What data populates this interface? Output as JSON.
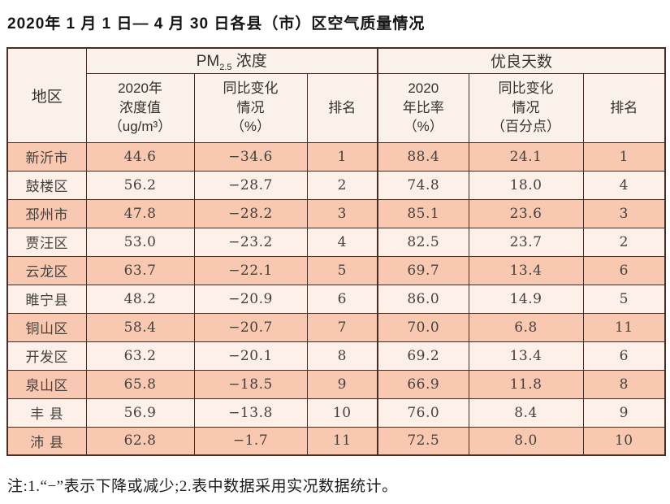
{
  "page": {
    "title": "2020年 1 月 1 日— 4 月 30 日各县（市）区空气质量情况",
    "note": "注:1.“−”表示下降或减少;2.表中数据采用实况数据统计。"
  },
  "colors": {
    "border": "#462e26",
    "row_odd_bg": "#f9c8b1",
    "row_even_bg": "#fdf0e8",
    "header_bg": "#faf1ea",
    "text": "#3c3835"
  },
  "table": {
    "col_region": "地区",
    "group_pm25": {
      "prefix": "PM",
      "sub": "2.5",
      "suffix": " 浓度"
    },
    "group_good_days": "优良天数",
    "sub_headers": {
      "pm_value": "2020年\n浓度值\n（ug/m³）",
      "pm_change": "同比变化\n情况\n（%）",
      "pm_rank": "排名",
      "gd_rate": "2020\n年比率\n（%）",
      "gd_change": "同比变化\n情况\n（百分点）",
      "gd_rank": "排名"
    },
    "columns_order": [
      "region",
      "pm_value",
      "pm_change",
      "pm_rank",
      "gd_rate",
      "gd_change",
      "gd_rank"
    ],
    "rows": [
      {
        "region": "新沂市",
        "pm_value": "44.6",
        "pm_change": "−34.6",
        "pm_rank": "1",
        "gd_rate": "88.4",
        "gd_change": "24.1",
        "gd_rank": "1"
      },
      {
        "region": "鼓楼区",
        "pm_value": "56.2",
        "pm_change": "−28.7",
        "pm_rank": "2",
        "gd_rate": "74.8",
        "gd_change": "18.0",
        "gd_rank": "4"
      },
      {
        "region": "邳州市",
        "pm_value": "47.8",
        "pm_change": "−28.2",
        "pm_rank": "3",
        "gd_rate": "85.1",
        "gd_change": "23.6",
        "gd_rank": "3"
      },
      {
        "region": "贾汪区",
        "pm_value": "53.0",
        "pm_change": "−23.2",
        "pm_rank": "4",
        "gd_rate": "82.5",
        "gd_change": "23.7",
        "gd_rank": "2"
      },
      {
        "region": "云龙区",
        "pm_value": "63.7",
        "pm_change": "−22.1",
        "pm_rank": "5",
        "gd_rate": "69.7",
        "gd_change": "13.4",
        "gd_rank": "6"
      },
      {
        "region": "睢宁县",
        "pm_value": "48.2",
        "pm_change": "−20.9",
        "pm_rank": "6",
        "gd_rate": "86.0",
        "gd_change": "14.9",
        "gd_rank": "5"
      },
      {
        "region": "铜山区",
        "pm_value": "58.4",
        "pm_change": "−20.7",
        "pm_rank": "7",
        "gd_rate": "70.0",
        "gd_change": "6.8",
        "gd_rank": "11"
      },
      {
        "region": "开发区",
        "pm_value": "63.2",
        "pm_change": "−20.1",
        "pm_rank": "8",
        "gd_rate": "69.2",
        "gd_change": "13.4",
        "gd_rank": "6"
      },
      {
        "region": "泉山区",
        "pm_value": "65.8",
        "pm_change": "−18.5",
        "pm_rank": "9",
        "gd_rate": "66.9",
        "gd_change": "11.8",
        "gd_rank": "8"
      },
      {
        "region": "丰 县",
        "pm_value": "56.9",
        "pm_change": "−13.8",
        "pm_rank": "10",
        "gd_rate": "76.0",
        "gd_change": "8.4",
        "gd_rank": "9"
      },
      {
        "region": "沛 县",
        "pm_value": "62.8",
        "pm_change": "−1.7",
        "pm_rank": "11",
        "gd_rate": "72.5",
        "gd_change": "8.0",
        "gd_rank": "10"
      }
    ]
  }
}
